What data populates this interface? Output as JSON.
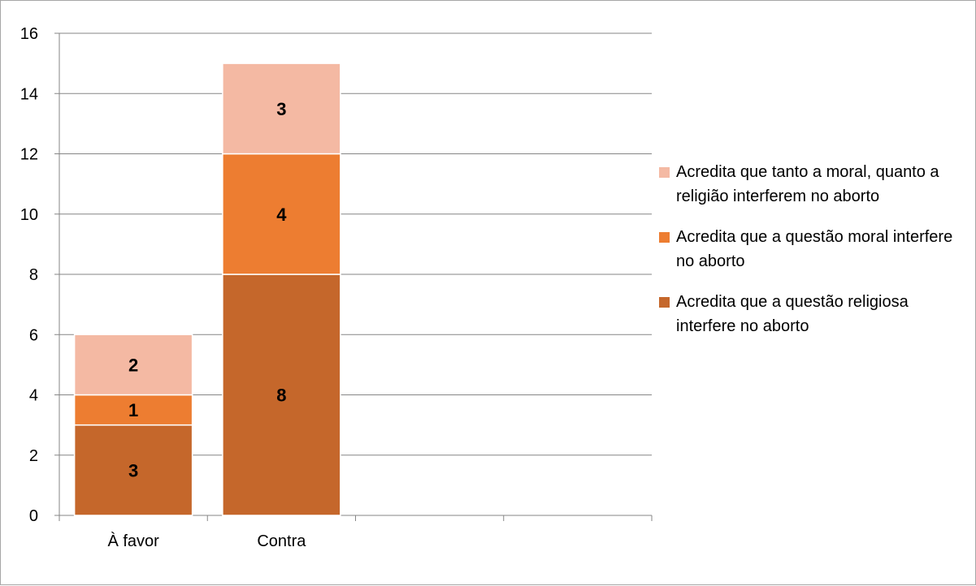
{
  "chart_data": {
    "type": "bar",
    "stacked": true,
    "categories": [
      "À favor",
      "Contra"
    ],
    "x_tick_count": 4,
    "series": [
      {
        "name": "Acredita que a questão religiosa interfere no aborto",
        "values": [
          3,
          8
        ],
        "color": "#c5672b"
      },
      {
        "name": "Acredita que a questão moral interfere no aborto",
        "values": [
          1,
          4
        ],
        "color": "#ed7d31"
      },
      {
        "name": "Acredita que tanto a moral, quanto a religião interferem no aborto",
        "values": [
          2,
          3
        ],
        "color": "#f4b9a3"
      }
    ],
    "ylim": [
      0,
      16
    ],
    "yticks": [
      "0",
      "2",
      "4",
      "6",
      "8",
      "10",
      "12",
      "14",
      "16"
    ],
    "grid": true,
    "legend_position": "right",
    "title": "",
    "xlabel": "",
    "ylabel": ""
  },
  "legend": {
    "items": [
      {
        "label": "Acredita que tanto a moral, quanto a religião interferem no aborto",
        "color": "#f4b9a3"
      },
      {
        "label": "Acredita que a questão moral interfere no aborto",
        "color": "#ed7d31"
      },
      {
        "label": "Acredita que a questão religiosa interfere no aborto",
        "color": "#c5672b"
      }
    ]
  }
}
